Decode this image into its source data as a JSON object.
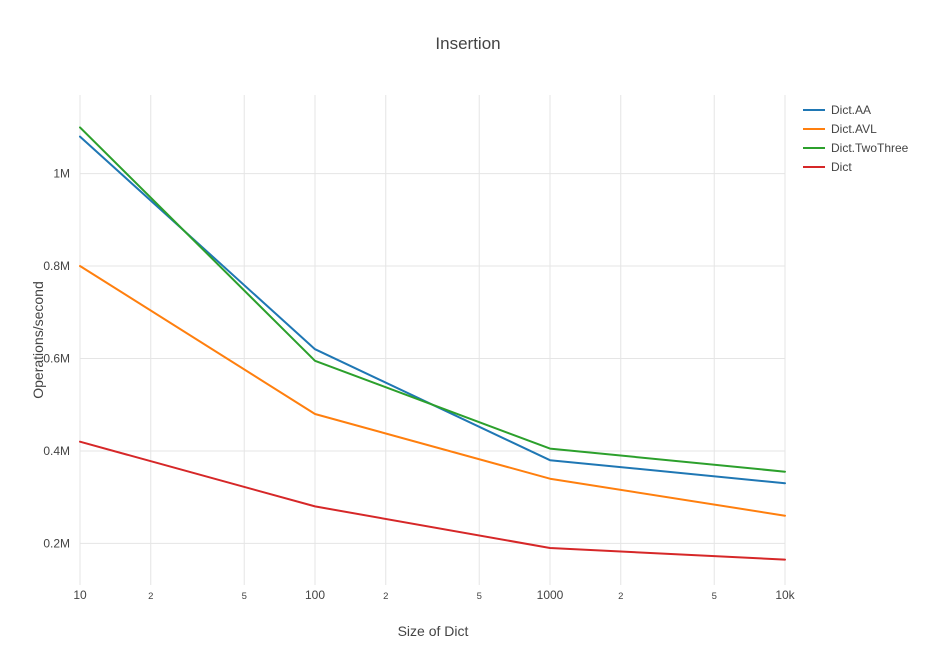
{
  "chart_data": {
    "type": "line",
    "title": "Insertion",
    "xlabel": "Size of Dict",
    "ylabel": "Operations/second",
    "x_scale": "log",
    "grid": true,
    "legend_position": "top-right-outside",
    "y_unit": "millions of operations per second",
    "x": [
      10,
      100,
      1000,
      10000
    ],
    "series": [
      {
        "name": "Dict.AA",
        "color": "#1f77b4",
        "values": [
          1.08,
          0.62,
          0.38,
          0.33
        ]
      },
      {
        "name": "Dict.AVL",
        "color": "#ff7f0e",
        "values": [
          0.8,
          0.48,
          0.34,
          0.26
        ]
      },
      {
        "name": "Dict.TwoThree",
        "color": "#2ca02c",
        "values": [
          1.1,
          0.595,
          0.405,
          0.355
        ]
      },
      {
        "name": "Dict",
        "color": "#d62728",
        "values": [
          0.42,
          0.28,
          0.19,
          0.165
        ]
      }
    ],
    "xticks": [
      {
        "value": 10,
        "label": "10",
        "minor": false
      },
      {
        "value": 20,
        "label": "2",
        "minor": true
      },
      {
        "value": 50,
        "label": "5",
        "minor": true
      },
      {
        "value": 100,
        "label": "100",
        "minor": false
      },
      {
        "value": 200,
        "label": "2",
        "minor": true
      },
      {
        "value": 500,
        "label": "5",
        "minor": true
      },
      {
        "value": 1000,
        "label": "1000",
        "minor": false
      },
      {
        "value": 2000,
        "label": "2",
        "minor": true
      },
      {
        "value": 5000,
        "label": "5",
        "minor": true
      },
      {
        "value": 10000,
        "label": "10k",
        "minor": false
      }
    ],
    "yticks": [
      {
        "value": 0.2,
        "label": "0.2M"
      },
      {
        "value": 0.4,
        "label": "0.4M"
      },
      {
        "value": 0.6,
        "label": "0.6M"
      },
      {
        "value": 0.8,
        "label": "0.8M"
      },
      {
        "value": 1.0,
        "label": "1M"
      }
    ],
    "ylim": [
      0.11,
      1.17
    ],
    "xlim_log10": [
      1,
      4
    ]
  },
  "style": {
    "grid_color": "#e5e5e5",
    "text_color": "#444444",
    "background": "#ffffff"
  }
}
